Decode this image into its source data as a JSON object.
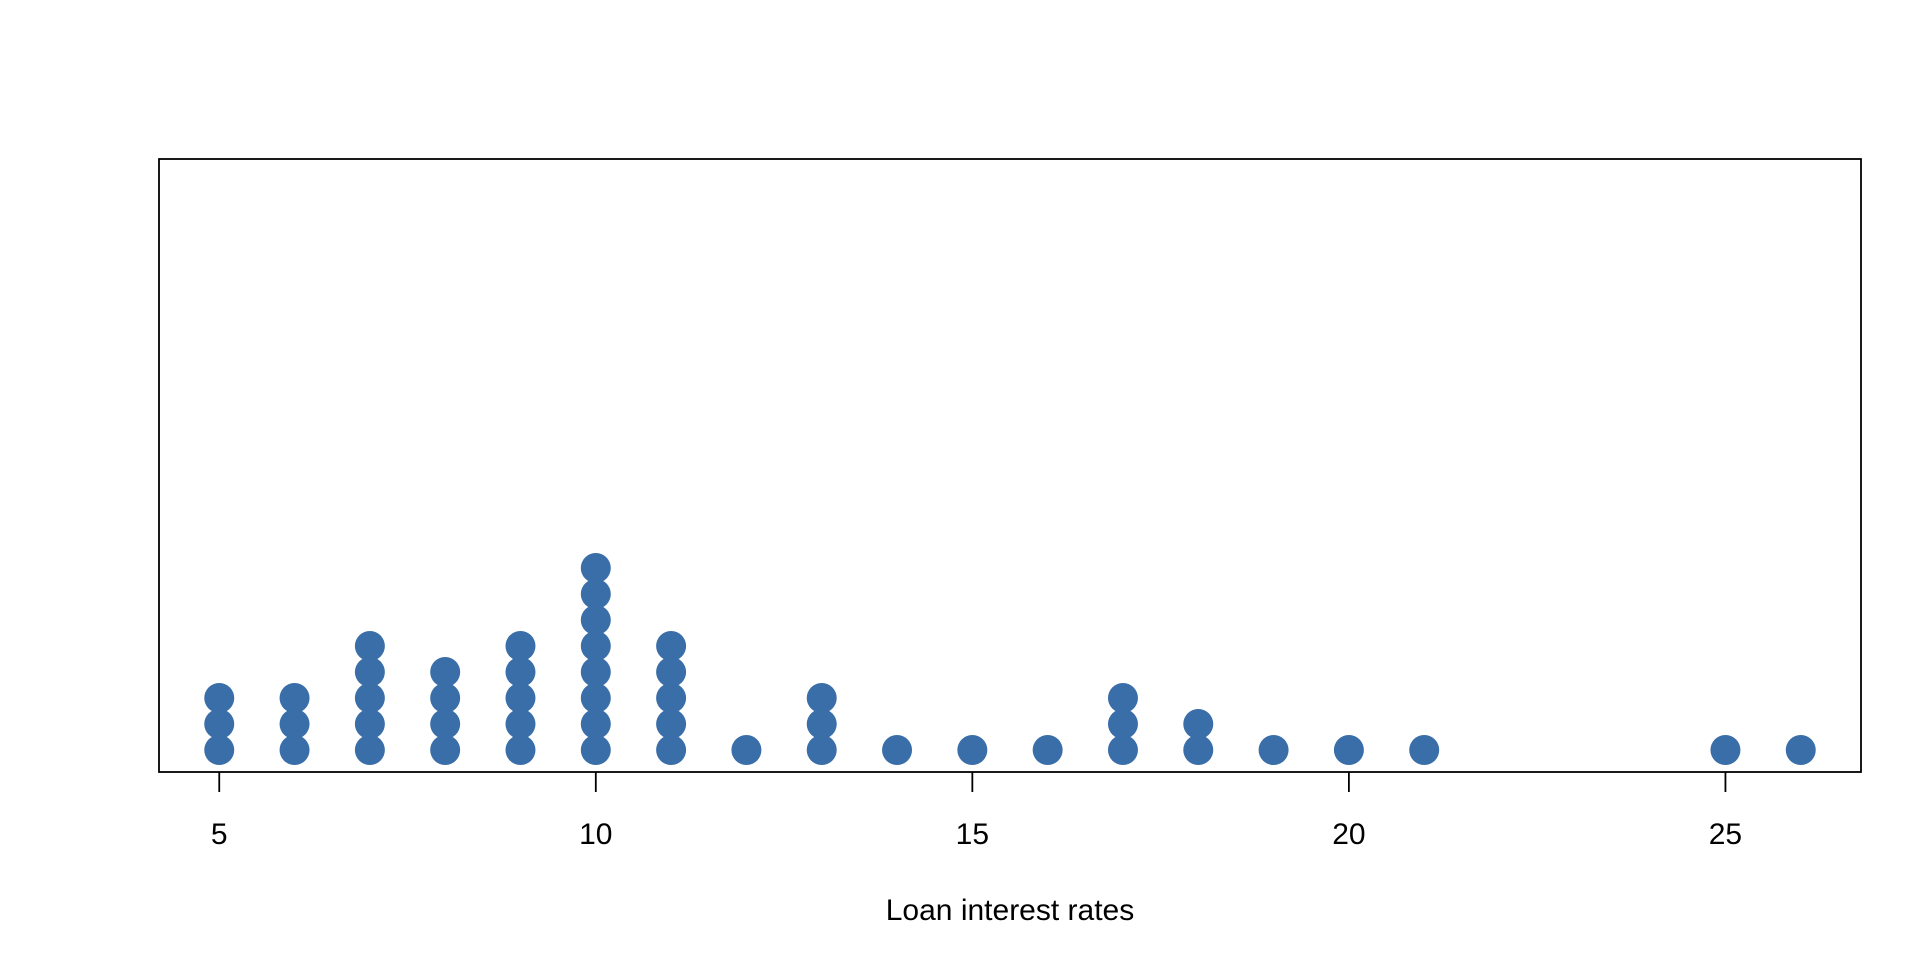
{
  "chart_data": {
    "type": "scatter",
    "subtype": "dot-plot",
    "title": "",
    "xlabel": "Loan interest rates",
    "ylabel": "",
    "xlim": [
      4.2,
      26.8
    ],
    "x_ticks": [
      5,
      10,
      15,
      20,
      25
    ],
    "grid": false,
    "legend": "none",
    "dot_color": "#3a6ea8",
    "points": [
      {
        "x": 5,
        "count": 3
      },
      {
        "x": 6,
        "count": 3
      },
      {
        "x": 7,
        "count": 5
      },
      {
        "x": 8,
        "count": 4
      },
      {
        "x": 9,
        "count": 5
      },
      {
        "x": 10,
        "count": 8
      },
      {
        "x": 11,
        "count": 5
      },
      {
        "x": 12,
        "count": 1
      },
      {
        "x": 13,
        "count": 3
      },
      {
        "x": 14,
        "count": 1
      },
      {
        "x": 15,
        "count": 1
      },
      {
        "x": 16,
        "count": 1
      },
      {
        "x": 17,
        "count": 3
      },
      {
        "x": 18,
        "count": 2
      },
      {
        "x": 19,
        "count": 1
      },
      {
        "x": 20,
        "count": 1
      },
      {
        "x": 21,
        "count": 1
      },
      {
        "x": 25,
        "count": 1
      },
      {
        "x": 26,
        "count": 1
      }
    ]
  }
}
